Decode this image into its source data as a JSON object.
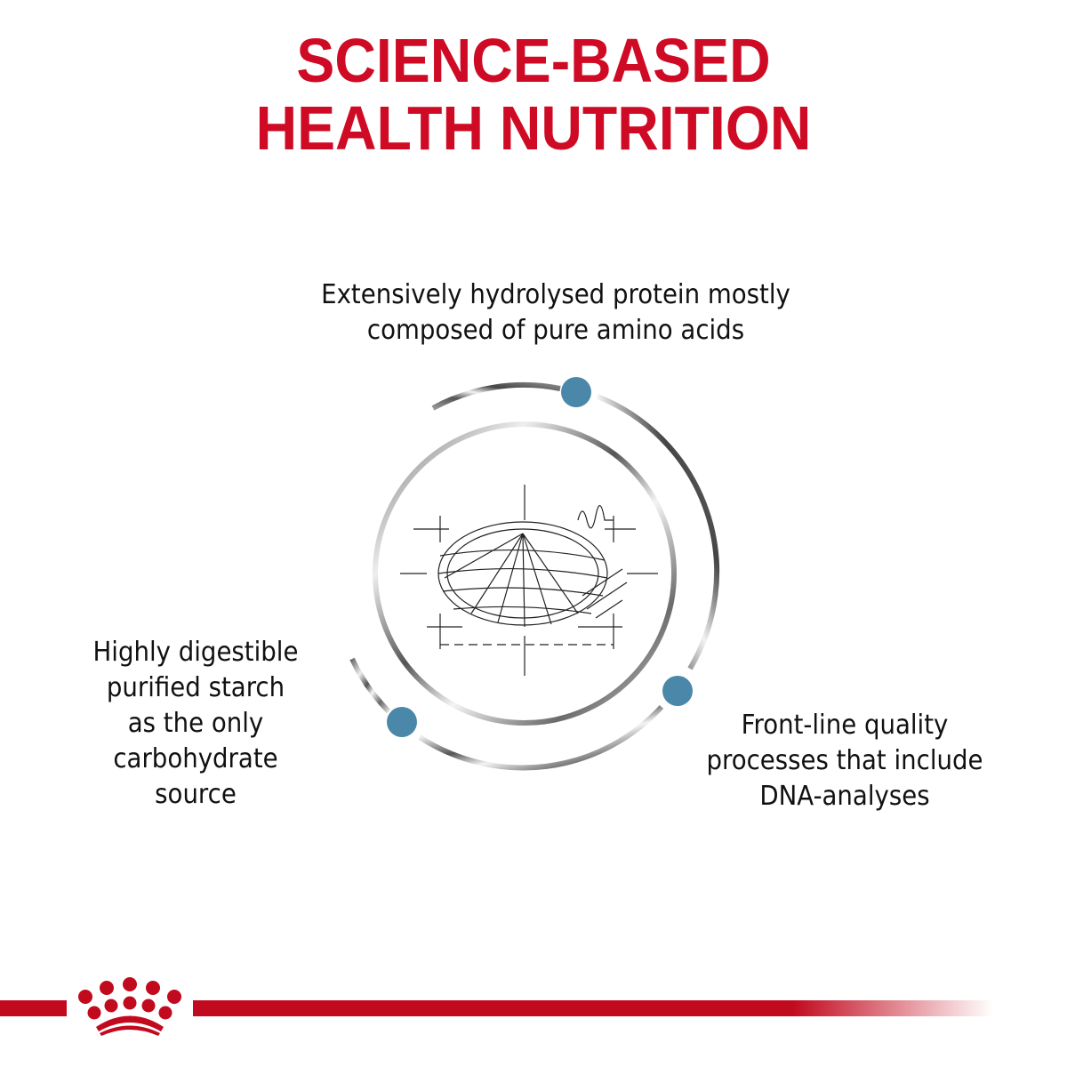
{
  "title": {
    "line1": "SCIENCE-BASED",
    "line2": "HEALTH NUTRITION"
  },
  "features": [
    {
      "lines": [
        "Extensively hydrolysed protein mostly",
        "composed of pure amino acids"
      ]
    },
    {
      "lines": [
        "Highly digestible",
        "purified starch",
        "as the only",
        "carbohydrate",
        "source"
      ]
    },
    {
      "lines": [
        "Front-line quality",
        "processes that include",
        "DNA-analyses"
      ]
    }
  ],
  "colors": {
    "brand_red": "#cf0a24",
    "dot_blue": "#4a87a8",
    "ring_grey": "#808080"
  },
  "icons": [
    "kibble-sketch-icon",
    "royal-canin-crown-logo"
  ]
}
